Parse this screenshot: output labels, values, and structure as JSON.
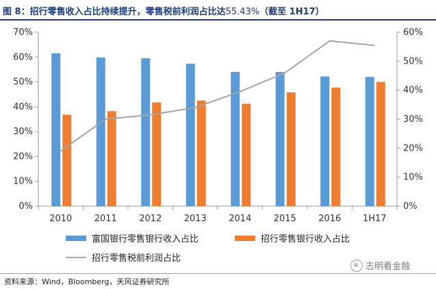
{
  "header": {
    "title_main": "图 8：招行零售收入占比持续提升，零售税前利润占比达",
    "title_pct": "55.43%",
    "title_tail": "（截至 1H17）"
  },
  "footer": {
    "source": "资料来源：Wind，Bloomberg，天风证券研究所",
    "watermark": "志明看金融"
  },
  "chart_data": {
    "type": "bar",
    "categories": [
      "2010",
      "2011",
      "2012",
      "2013",
      "2014",
      "2015",
      "2016",
      "1H17"
    ],
    "series": [
      {
        "name": "富国银行零售银行收入占比",
        "kind": "bar",
        "axis": "left",
        "color": "#5b9bd5",
        "values": [
          61.5,
          59.8,
          59.5,
          57.3,
          54.0,
          54.0,
          52.2,
          52.0
        ]
      },
      {
        "name": "招行零售银行收入占比",
        "kind": "bar",
        "axis": "left",
        "color": "#ed7d31",
        "values": [
          36.8,
          38.2,
          41.7,
          42.5,
          41.2,
          45.8,
          47.7,
          50.0
        ]
      },
      {
        "name": "招行零售税前利润占比",
        "kind": "line",
        "axis": "right",
        "color": "#a5a5a5",
        "values": [
          19,
          30,
          31.5,
          34,
          39.5,
          46,
          57,
          55.43
        ]
      }
    ],
    "yleft": {
      "lim": [
        0,
        70
      ],
      "ticks": [
        0,
        10,
        20,
        30,
        40,
        50,
        60,
        70
      ],
      "tick_labels": [
        "0%",
        "10%",
        "20%",
        "30%",
        "40%",
        "50%",
        "60%",
        "70%"
      ]
    },
    "yright": {
      "lim": [
        0,
        60
      ],
      "ticks": [
        0,
        10,
        20,
        30,
        40,
        50,
        60
      ],
      "tick_labels": [
        "0%",
        "10%",
        "20%",
        "30%",
        "40%",
        "50%",
        "60%"
      ]
    },
    "grid": false,
    "legend_position": "bottom"
  }
}
